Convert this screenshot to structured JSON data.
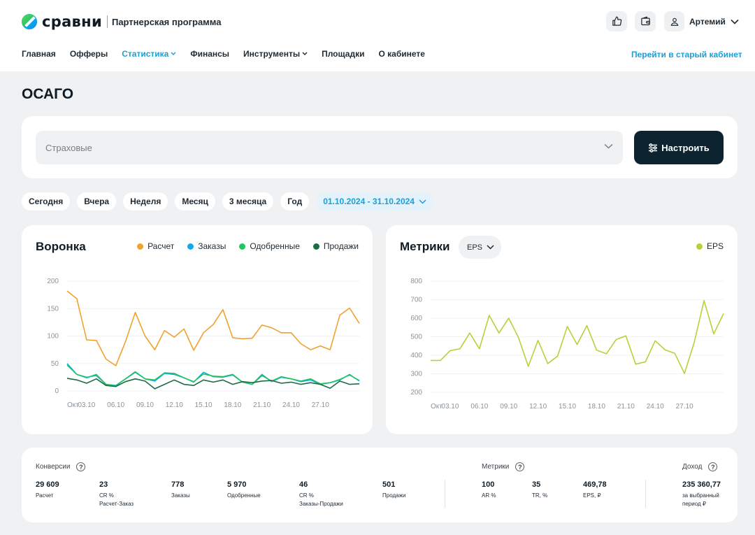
{
  "brand": {
    "name": "сравни",
    "subtitle": "Партнерская программа"
  },
  "header": {
    "user_name": "Артемий",
    "nav": [
      {
        "label": "Главная",
        "active": false,
        "dropdown": false
      },
      {
        "label": "Офферы",
        "active": false,
        "dropdown": false
      },
      {
        "label": "Статистика",
        "active": true,
        "dropdown": true
      },
      {
        "label": "Финансы",
        "active": false,
        "dropdown": false
      },
      {
        "label": "Инструменты",
        "active": false,
        "dropdown": true
      },
      {
        "label": "Площадки",
        "active": false,
        "dropdown": false
      },
      {
        "label": "О кабинете",
        "active": false,
        "dropdown": false
      }
    ],
    "old_cabinet_link": "Перейти в старый кабинет"
  },
  "page": {
    "title": "ОСАГО"
  },
  "filter": {
    "select_placeholder": "Страховые",
    "setup_button": "Настроить"
  },
  "periods": [
    "Сегодня",
    "Вчера",
    "Неделя",
    "Месяц",
    "3 месяца",
    "Год"
  ],
  "date_range": "01.10.2024 - 31.10.2024",
  "colors": {
    "accent": "#1b9fd6",
    "dark_button": "#0d2330",
    "raschet": "#f0a22e",
    "zakazy": "#15a8e8",
    "odobrennye": "#22c55e",
    "prodazhi": "#1f6b43",
    "eps": "#b3d33a"
  },
  "chart_data": [
    {
      "type": "line",
      "title": "Воронка",
      "x": [
        "Окт",
        "02.10",
        "03.10",
        "04.10",
        "05.10",
        "06.10",
        "07.10",
        "08.10",
        "09.10",
        "10.10",
        "11.10",
        "12.10",
        "13.10",
        "14.10",
        "15.10",
        "16.10",
        "17.10",
        "18.10",
        "19.10",
        "20.10",
        "21.10",
        "22.10",
        "23.10",
        "24.10",
        "25.10",
        "26.10",
        "27.10",
        "28.10",
        "29.10",
        "30.10",
        "31.10"
      ],
      "tick_labels": [
        "Окт",
        "03.10",
        "06.10",
        "09.10",
        "12.10",
        "15.10",
        "18.10",
        "21.10",
        "24.10",
        "27.10"
      ],
      "y_ticks": [
        0,
        50,
        100,
        150,
        200
      ],
      "ylim": [
        0,
        200
      ],
      "series": [
        {
          "name": "Расчет",
          "color": "#f0a22e",
          "values": [
            182,
            168,
            93,
            92,
            58,
            46,
            90,
            143,
            100,
            75,
            110,
            98,
            113,
            74,
            106,
            121,
            148,
            97,
            95,
            96,
            120,
            115,
            106,
            106,
            86,
            75,
            82,
            75,
            138,
            151,
            123
          ]
        },
        {
          "name": "Заказы",
          "color": "#15a8e8",
          "values": [
            50,
            30,
            25,
            28,
            12,
            10,
            22,
            34,
            22,
            18,
            32,
            30,
            24,
            16,
            34,
            26,
            25,
            29,
            16,
            12,
            30,
            17,
            25,
            22,
            17,
            20,
            12,
            15,
            20,
            30,
            18
          ]
        },
        {
          "name": "Одобренные",
          "color": "#22c55e",
          "values": [
            47,
            30,
            24,
            30,
            12,
            9,
            22,
            35,
            22,
            20,
            33,
            32,
            24,
            17,
            31,
            27,
            26,
            30,
            16,
            12,
            28,
            18,
            26,
            22,
            18,
            22,
            13,
            15,
            21,
            29,
            19
          ]
        },
        {
          "name": "Продажи",
          "color": "#1f6b43",
          "values": [
            23,
            20,
            14,
            22,
            10,
            8,
            17,
            22,
            18,
            4,
            12,
            20,
            12,
            10,
            20,
            16,
            20,
            12,
            17,
            15,
            18,
            19,
            14,
            16,
            12,
            15,
            12,
            5,
            18,
            12,
            13
          ]
        }
      ]
    },
    {
      "type": "line",
      "title": "Метрики",
      "x": [
        "Окт",
        "02.10",
        "03.10",
        "04.10",
        "05.10",
        "06.10",
        "07.10",
        "08.10",
        "09.10",
        "10.10",
        "11.10",
        "12.10",
        "13.10",
        "14.10",
        "15.10",
        "16.10",
        "17.10",
        "18.10",
        "19.10",
        "20.10",
        "21.10",
        "22.10",
        "23.10",
        "24.10",
        "25.10",
        "26.10",
        "27.10",
        "28.10",
        "29.10",
        "30.10",
        "31.10"
      ],
      "tick_labels": [
        "Окт",
        "03.10",
        "06.10",
        "09.10",
        "12.10",
        "15.10",
        "18.10",
        "21.10",
        "24.10",
        "27.10"
      ],
      "y_ticks": [
        200,
        300,
        400,
        500,
        600,
        700,
        800
      ],
      "ylim": [
        200,
        800
      ],
      "selector": "EPS",
      "series": [
        {
          "name": "EPS",
          "color": "#b3d33a",
          "values": [
            372,
            372,
            425,
            435,
            520,
            435,
            615,
            520,
            600,
            495,
            340,
            480,
            355,
            395,
            555,
            458,
            560,
            428,
            408,
            485,
            505,
            352,
            365,
            478,
            430,
            410,
            302,
            470,
            695,
            515,
            625
          ]
        }
      ]
    }
  ],
  "stats": {
    "conversions_title": "Конверсии",
    "metrics_title": "Метрики",
    "income_title": "Доход",
    "help_icon": "?",
    "items": [
      {
        "value": "29 609",
        "label": "Расчет",
        "label2": ""
      },
      {
        "value": "23",
        "label": "CR %",
        "label2": "Расчет-Заказ"
      },
      {
        "value": "778",
        "label": "Заказы",
        "label2": ""
      },
      {
        "value": "5 970",
        "label": "Одобренные",
        "label2": ""
      },
      {
        "value": "46",
        "label": "CR %",
        "label2": "Заказы-Продажи"
      },
      {
        "value": "501",
        "label": "Продажи",
        "label2": ""
      }
    ],
    "metrics": [
      {
        "value": "100",
        "label": "AR %"
      },
      {
        "value": "35",
        "label": "TR, %"
      },
      {
        "value": "469,78",
        "label": "EPS, ₽"
      }
    ],
    "income": {
      "value": "235 360,77",
      "label": "за выбранный",
      "label2": "период ₽"
    }
  }
}
